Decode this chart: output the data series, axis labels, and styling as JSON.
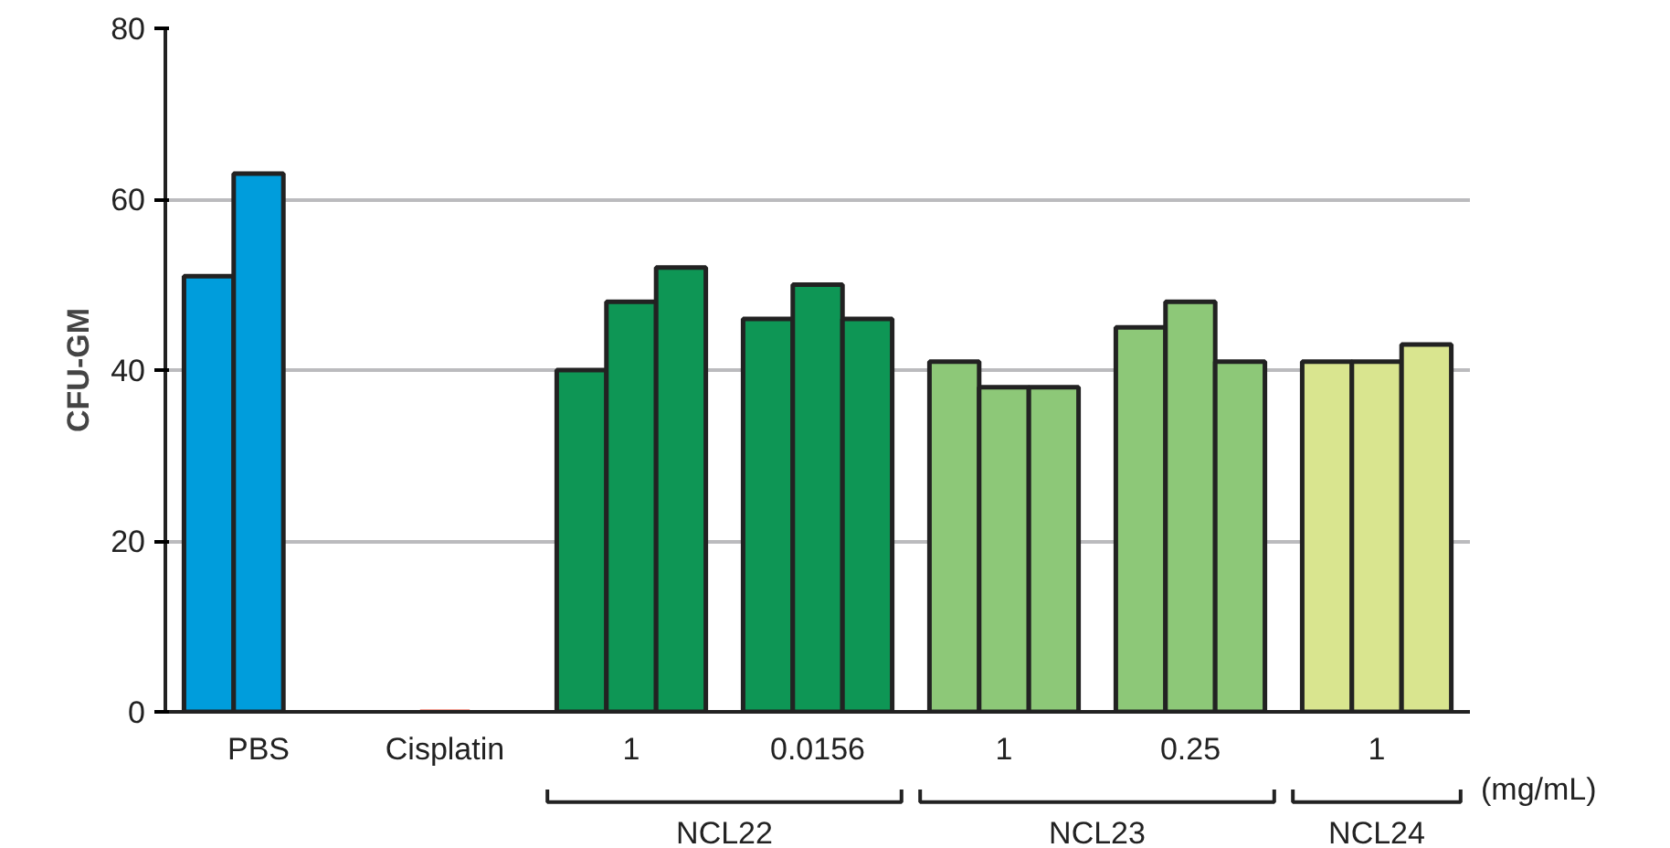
{
  "chart_data": {
    "type": "bar",
    "ylabel": "CFU-GM",
    "categories": [
      "PBS",
      "Cisplatin",
      "1",
      "0.0156",
      "1",
      "0.25",
      "1"
    ],
    "series": [
      {
        "colors": [
          "#009ddc",
          "#e8412a",
          "#0e9655",
          "#0e9655",
          "#8dc878",
          "#8dc878",
          "#d9e58f"
        ],
        "values": [
          51,
          null,
          40,
          46,
          41,
          45,
          41
        ]
      },
      {
        "colors": [
          "#009ddc",
          "#e8412a",
          "#0e9655",
          "#0e9655",
          "#8dc878",
          "#8dc878",
          "#d9e58f"
        ],
        "values": [
          63,
          0,
          48,
          50,
          38,
          48,
          41
        ]
      },
      {
        "colors": [
          "#009ddc",
          "#e8412a",
          "#0e9655",
          "#0e9655",
          "#8dc878",
          "#8dc878",
          "#d9e58f"
        ],
        "values": [
          null,
          null,
          52,
          46,
          38,
          41,
          43
        ]
      }
    ],
    "ylim": [
      0,
      80
    ],
    "yticks": [
      0,
      20,
      40,
      60,
      80
    ],
    "grid": "y",
    "annotations": [
      "NCL22",
      "NCL23",
      "NCL24",
      "(mg/mL)"
    ]
  }
}
